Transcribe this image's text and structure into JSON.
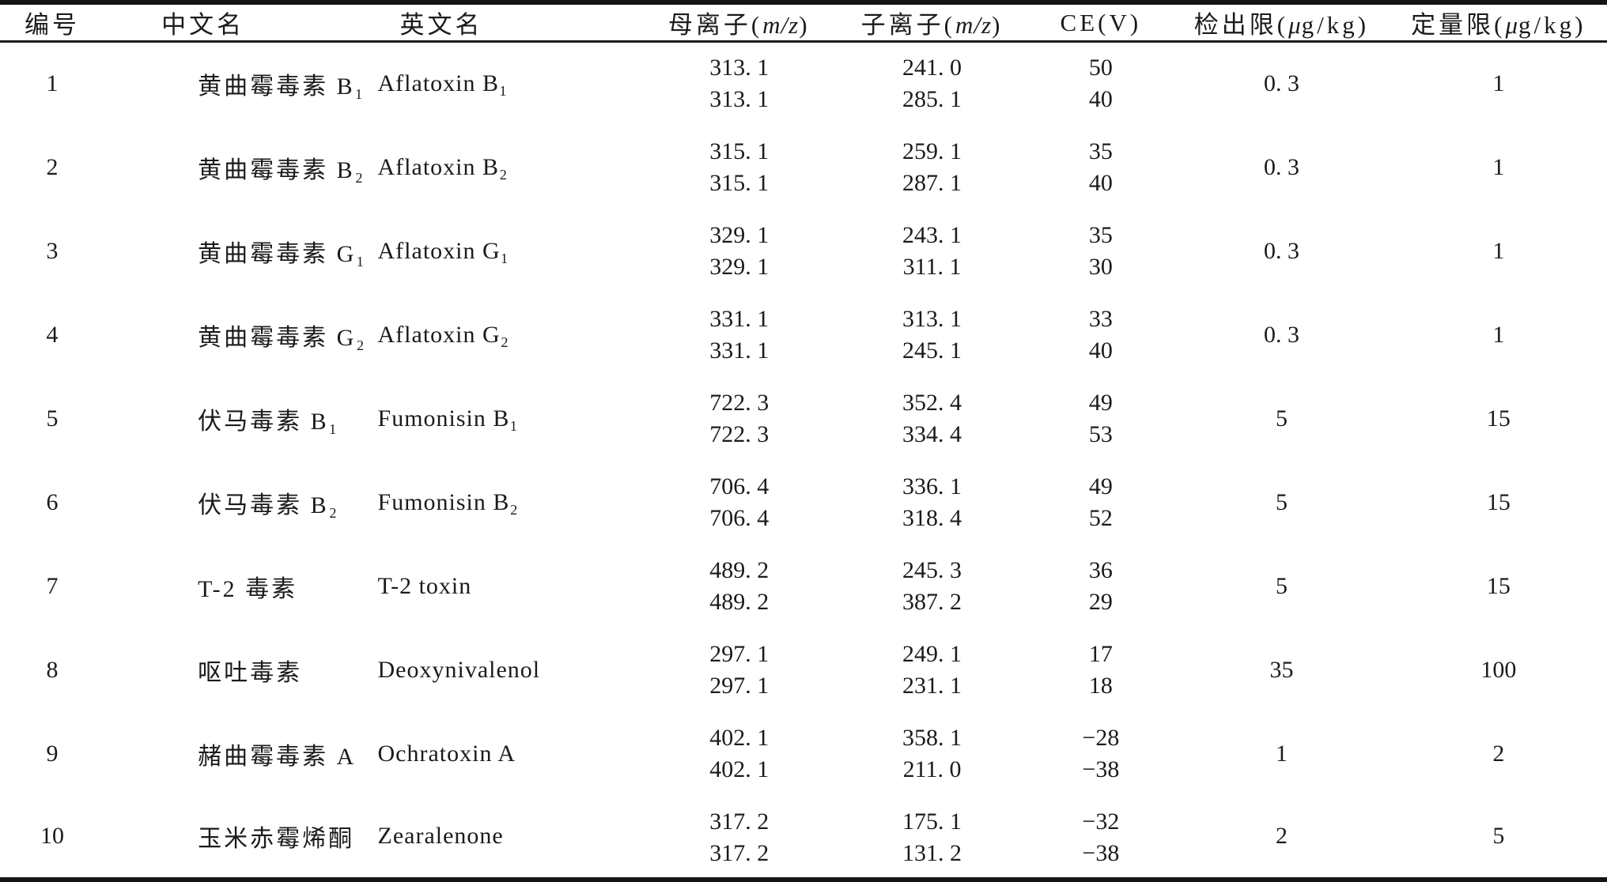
{
  "table": {
    "columns": [
      {
        "key": "id",
        "label": "编号",
        "italic": "",
        "suffix": ""
      },
      {
        "key": "cn",
        "label": "中文名",
        "italic": "",
        "suffix": ""
      },
      {
        "key": "en",
        "label": "英文名",
        "italic": "",
        "suffix": ""
      },
      {
        "key": "parent",
        "label": "母离子(",
        "italic": "m/z",
        "suffix": ")"
      },
      {
        "key": "daughter",
        "label": "子离子(",
        "italic": "m/z",
        "suffix": ")"
      },
      {
        "key": "ce",
        "label": "CE(V)",
        "italic": "",
        "suffix": ""
      },
      {
        "key": "lod",
        "label": "检出限(",
        "italic": "μ",
        "suffix": "g/kg)"
      },
      {
        "key": "loq",
        "label": "定量限(",
        "italic": "μ",
        "suffix": "g/kg)"
      }
    ],
    "rows": [
      {
        "id": "1",
        "cn": "黄曲霉毒素 B₁",
        "en": "Aflatoxin B₁",
        "parent": [
          "313. 1",
          "313. 1"
        ],
        "daughter": [
          "241. 0",
          "285. 1"
        ],
        "ce": [
          "50",
          "40"
        ],
        "lod": "0. 3",
        "loq": "1"
      },
      {
        "id": "2",
        "cn": "黄曲霉毒素 B₂",
        "en": "Aflatoxin B₂",
        "parent": [
          "315. 1",
          "315. 1"
        ],
        "daughter": [
          "259. 1",
          "287. 1"
        ],
        "ce": [
          "35",
          "40"
        ],
        "lod": "0. 3",
        "loq": "1"
      },
      {
        "id": "3",
        "cn": "黄曲霉毒素 G₁",
        "en": "Aflatoxin G₁",
        "parent": [
          "329. 1",
          "329. 1"
        ],
        "daughter": [
          "243. 1",
          "311. 1"
        ],
        "ce": [
          "35",
          "30"
        ],
        "lod": "0. 3",
        "loq": "1"
      },
      {
        "id": "4",
        "cn": "黄曲霉毒素 G₂",
        "en": "Aflatoxin G₂",
        "parent": [
          "331. 1",
          "331. 1"
        ],
        "daughter": [
          "313. 1",
          "245. 1"
        ],
        "ce": [
          "33",
          "40"
        ],
        "lod": "0. 3",
        "loq": "1"
      },
      {
        "id": "5",
        "cn": "伏马毒素 B₁",
        "en": "Fumonisin B₁",
        "parent": [
          "722. 3",
          "722. 3"
        ],
        "daughter": [
          "352. 4",
          "334. 4"
        ],
        "ce": [
          "49",
          "53"
        ],
        "lod": "5",
        "loq": "15"
      },
      {
        "id": "6",
        "cn": "伏马毒素 B₂",
        "en": "Fumonisin B₂",
        "parent": [
          "706. 4",
          "706. 4"
        ],
        "daughter": [
          "336. 1",
          "318. 4"
        ],
        "ce": [
          "49",
          "52"
        ],
        "lod": "5",
        "loq": "15"
      },
      {
        "id": "7",
        "cn": "T-2 毒素",
        "en": "T-2 toxin",
        "parent": [
          "489. 2",
          "489. 2"
        ],
        "daughter": [
          "245. 3",
          "387. 2"
        ],
        "ce": [
          "36",
          "29"
        ],
        "lod": "5",
        "loq": "15"
      },
      {
        "id": "8",
        "cn": "呕吐毒素",
        "en": "Deoxynivalenol",
        "parent": [
          "297. 1",
          "297. 1"
        ],
        "daughter": [
          "249. 1",
          "231. 1"
        ],
        "ce": [
          "17",
          "18"
        ],
        "lod": "35",
        "loq": "100"
      },
      {
        "id": "9",
        "cn": "赭曲霉毒素 A",
        "en": "Ochratoxin A",
        "parent": [
          "402. 1",
          "402. 1"
        ],
        "daughter": [
          "358. 1",
          "211. 0"
        ],
        "ce": [
          "−28",
          "−38"
        ],
        "lod": "1",
        "loq": "2"
      },
      {
        "id": "10",
        "cn": "玉米赤霉烯酮",
        "en": "Zearalenone",
        "parent": [
          "317. 2",
          "317. 2"
        ],
        "daughter": [
          "175. 1",
          "131. 2"
        ],
        "ce": [
          "−32",
          "−38"
        ],
        "lod": "2",
        "loq": "5"
      }
    ],
    "colors": {
      "rule": "#141414",
      "text": "#1b1b1b",
      "background": "#ffffff"
    }
  }
}
